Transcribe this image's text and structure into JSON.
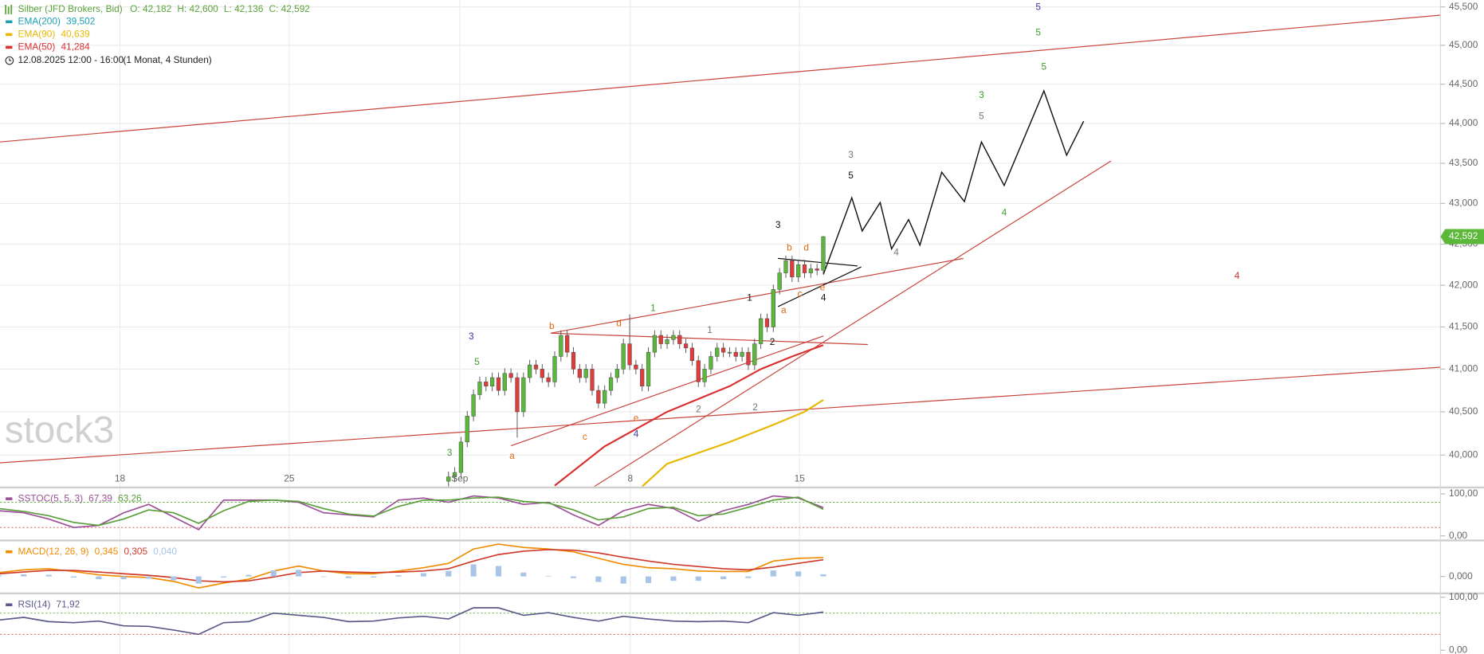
{
  "header": {
    "symbol": "Silber (JFD Brokers, Bid)",
    "ohlc": [
      "O: 42,182",
      "H: 42,600",
      "L: 42,136",
      "C: 42,592"
    ],
    "legend": [
      {
        "name": "EMA(200)",
        "value": "39,502",
        "color": "#1b9fb3"
      },
      {
        "name": "EMA(90)",
        "value": "40,639",
        "color": "#e8b800"
      },
      {
        "name": "EMA(50)",
        "value": "41,284",
        "color": "#d93030"
      }
    ],
    "timeframe": "12.08.2025 12:00 - 16:00",
    "period": "(1 Monat, 4 Stunden)"
  },
  "watermark": "stock3",
  "chart_data": [
    {
      "type": "candlestick",
      "log_scale": true,
      "grid": true,
      "up_color": "#5cb83a",
      "down_color": "#e03c3c",
      "ylim": [
        39640,
        45590
      ],
      "yticks": [
        {
          "value": 40000,
          "label": "40,000"
        },
        {
          "value": 40500,
          "label": "40,500"
        },
        {
          "value": 41000,
          "label": "41,000"
        },
        {
          "value": 41500,
          "label": "41,500"
        },
        {
          "value": 42000,
          "label": "42,000"
        },
        {
          "value": 42500,
          "label": "42,500"
        },
        {
          "value": 43000,
          "label": "43,000"
        },
        {
          "value": 43500,
          "label": "43,500"
        },
        {
          "value": 44000,
          "label": "44,000"
        },
        {
          "value": 44500,
          "label": "44,500"
        },
        {
          "value": 45000,
          "label": "45,000"
        },
        {
          "value": 45500,
          "label": "45,500"
        }
      ],
      "xlim": [
        -71.8,
        158.8
      ],
      "xticks": [
        {
          "value": -52.6,
          "label": "18"
        },
        {
          "value": -25.5,
          "label": "25"
        },
        {
          "value": 1.8,
          "label": "Sep"
        },
        {
          "value": 29.1,
          "label": "8"
        },
        {
          "value": 56.2,
          "label": "15"
        }
      ],
      "x": [
        0,
        1,
        2,
        3,
        4,
        5,
        6,
        7,
        8,
        9,
        10,
        11,
        12,
        13,
        14,
        15,
        16,
        17,
        18,
        19,
        20,
        21,
        22,
        23,
        24,
        25,
        26,
        27,
        28,
        29,
        30,
        31,
        32,
        33,
        34,
        35,
        36,
        37,
        38,
        39,
        40,
        41,
        42,
        43,
        44,
        45,
        46,
        47,
        48,
        49,
        50,
        51,
        52,
        53,
        54,
        55,
        56,
        57,
        58,
        59,
        60
      ],
      "open": [
        39700,
        39750,
        39800,
        40150,
        40450,
        40700,
        40850,
        40800,
        40900,
        40750,
        40950,
        40900,
        40500,
        40900,
        41050,
        41000,
        40900,
        40850,
        41150,
        41400,
        41200,
        41000,
        40900,
        41000,
        40750,
        40600,
        40750,
        40900,
        41000,
        41300,
        41050,
        41000,
        40800,
        41200,
        41400,
        41300,
        41350,
        41400,
        41300,
        41250,
        41100,
        40850,
        41000,
        41150,
        41250,
        41200,
        41200,
        41150,
        41200,
        41050,
        41300,
        41600,
        41500,
        41950,
        42150,
        42300,
        42100,
        42250,
        42150,
        42200,
        42182
      ],
      "high": [
        39810,
        39860,
        40210,
        40510,
        40760,
        40910,
        40910,
        40960,
        40960,
        41010,
        41010,
        40960,
        40960,
        41110,
        41110,
        41060,
        40960,
        41210,
        41460,
        41460,
        41260,
        41060,
        41060,
        41060,
        40810,
        40810,
        40960,
        41060,
        41360,
        41650,
        41110,
        41060,
        41260,
        41460,
        41460,
        41410,
        41460,
        41460,
        41360,
        41310,
        41160,
        41060,
        41210,
        41310,
        41310,
        41260,
        41260,
        41260,
        41260,
        41360,
        41660,
        41660,
        42010,
        42210,
        42360,
        42360,
        42310,
        42310,
        42260,
        42260,
        42600
      ],
      "low": [
        39640,
        39690,
        39740,
        40090,
        40390,
        40640,
        40740,
        40740,
        40690,
        40690,
        40840,
        40200,
        40440,
        40840,
        40940,
        40840,
        40790,
        40790,
        41090,
        41140,
        40940,
        40840,
        40840,
        40690,
        40540,
        40540,
        40690,
        40840,
        40940,
        40990,
        40940,
        40740,
        40740,
        41140,
        41240,
        41240,
        41290,
        41240,
        41190,
        41040,
        40790,
        40790,
        40940,
        41090,
        41140,
        41140,
        41090,
        41090,
        40990,
        40990,
        41240,
        41440,
        41440,
        41890,
        42090,
        42040,
        42040,
        42090,
        42090,
        42122,
        42136
      ],
      "close": [
        39750,
        39800,
        40150,
        40450,
        40700,
        40850,
        40800,
        40900,
        40750,
        40950,
        40900,
        40500,
        40900,
        41050,
        41000,
        40900,
        40850,
        41150,
        41400,
        41200,
        41000,
        40900,
        41000,
        40750,
        40600,
        40750,
        40900,
        41000,
        41300,
        41050,
        41000,
        40800,
        41200,
        41400,
        41300,
        41350,
        41400,
        41300,
        41250,
        41100,
        40850,
        41000,
        41150,
        41250,
        41200,
        41200,
        41150,
        41200,
        41050,
        41300,
        41600,
        41500,
        41950,
        42150,
        42300,
        42100,
        42250,
        42150,
        42200,
        42182,
        42592
      ],
      "series": [
        {
          "color": "#d93030",
          "x": [
            17,
            25,
            35,
            45,
            50,
            55,
            60
          ],
          "values": [
            39650,
            40100,
            40500,
            40800,
            41000,
            41150,
            41284
          ]
        },
        {
          "color": "#e8b800",
          "x": [
            31,
            35,
            45,
            52,
            57,
            60
          ],
          "values": [
            39640,
            39900,
            40150,
            40350,
            40500,
            40639
          ]
        }
      ],
      "last_price": 42592,
      "last_price_label": "42,592",
      "last_price_color": "#5cb83a",
      "wave_labels": [
        {
          "text": "5",
          "color": "#3a3aa0"
        },
        {
          "text": "5",
          "color": "#3f9a2f"
        },
        {
          "text": "5",
          "color": "#3f9a2f"
        },
        {
          "text": "3",
          "color": "#3f9a2f"
        },
        {
          "text": "5",
          "color": "#777"
        },
        {
          "text": "3",
          "color": "#777"
        },
        {
          "text": "5",
          "color": "#111"
        },
        {
          "text": "3",
          "color": "#111"
        },
        {
          "text": "b",
          "color": "#e06a10"
        },
        {
          "text": "d",
          "color": "#e06a10"
        },
        {
          "text": "4",
          "color": "#777"
        },
        {
          "text": "4",
          "color": "#c83030"
        },
        {
          "text": "e",
          "color": "#e06a10"
        },
        {
          "text": "c",
          "color": "#e06a10"
        },
        {
          "text": "1",
          "color": "#111"
        },
        {
          "text": "4",
          "color": "#111"
        },
        {
          "text": "a",
          "color": "#e06a10"
        },
        {
          "text": "2",
          "color": "#111"
        },
        {
          "text": "1",
          "color": "#3f9a2f"
        },
        {
          "text": "d",
          "color": "#e06a10"
        },
        {
          "text": "b",
          "color": "#e06a10"
        },
        {
          "text": "1",
          "color": "#777"
        },
        {
          "text": "3",
          "color": "#3a3aa0"
        },
        {
          "text": "5",
          "color": "#3f9a2f"
        },
        {
          "text": "4",
          "color": "#3f9a2f"
        },
        {
          "text": "2",
          "color": "#777"
        },
        {
          "text": "2",
          "color": "#777"
        },
        {
          "text": "e",
          "color": "#e06a10"
        },
        {
          "text": "4",
          "color": "#3a3aa0"
        },
        {
          "text": "c",
          "color": "#e06a10"
        },
        {
          "text": "a",
          "color": "#e06a10"
        },
        {
          "text": "3",
          "color": "#3f9a2f"
        }
      ]
    },
    {
      "type": "line",
      "title": "SSTOC(5, 5, 3)",
      "color": "#9b4f96",
      "ylim": [
        -13,
        113
      ],
      "yticks": [
        {
          "value": 100,
          "label": "100,00"
        },
        {
          "value": 0,
          "label": "0,00"
        }
      ],
      "levels": [
        20,
        80
      ],
      "level_colors": [
        "#e05050",
        "#5cb83a"
      ],
      "xlim": [
        -71.8,
        158.8
      ],
      "x": [
        -72,
        -68,
        -64,
        -60,
        -56,
        -52,
        -48,
        -44,
        -40,
        -36,
        -32,
        -28,
        -24,
        -20,
        -16,
        -12,
        -8,
        -4,
        0,
        4,
        8,
        12,
        16,
        20,
        24,
        28,
        32,
        36,
        40,
        44,
        48,
        52,
        56,
        60
      ],
      "series": [
        {
          "color": "#9b4f96",
          "value_label": "67,39",
          "values": [
            60,
            55,
            40,
            20,
            25,
            55,
            75,
            45,
            15,
            85,
            85,
            85,
            80,
            55,
            50,
            45,
            85,
            90,
            80,
            95,
            90,
            75,
            80,
            50,
            25,
            60,
            75,
            65,
            35,
            60,
            75,
            95,
            90,
            67.39
          ]
        },
        {
          "color": "#5a9e3a",
          "value_label": "63,26",
          "values": [
            65,
            58,
            48,
            32,
            25,
            40,
            62,
            55,
            30,
            60,
            82,
            85,
            82,
            65,
            52,
            47,
            70,
            85,
            85,
            90,
            92,
            82,
            78,
            62,
            38,
            45,
            65,
            68,
            48,
            52,
            68,
            85,
            92,
            63.26
          ]
        }
      ]
    },
    {
      "type": "line",
      "title": "MACD(12, 26, 9)",
      "color": "#f08c00",
      "ylim": [
        -0.31,
        0.64
      ],
      "yticks": [
        {
          "value": 0,
          "label": "0,000"
        }
      ],
      "xlim": [
        -71.8,
        158.8
      ],
      "x": [
        -72,
        -68,
        -64,
        -60,
        -56,
        -52,
        -48,
        -44,
        -40,
        -36,
        -32,
        -28,
        -24,
        -20,
        -16,
        -12,
        -8,
        -4,
        0,
        4,
        8,
        12,
        16,
        20,
        24,
        28,
        32,
        36,
        40,
        44,
        48,
        52,
        56,
        60
      ],
      "series": [
        {
          "color": "#f08c00",
          "value_label": "0,345",
          "values": [
            0.07,
            0.12,
            0.14,
            0.09,
            0.03,
            0,
            -0.02,
            -0.09,
            -0.21,
            -0.12,
            -0.05,
            0.1,
            0.19,
            0.1,
            0.05,
            0.05,
            0.1,
            0.16,
            0.24,
            0.5,
            0.59,
            0.53,
            0.5,
            0.45,
            0.33,
            0.22,
            0.16,
            0.14,
            0.1,
            0.09,
            0.09,
            0.28,
            0.33,
            0.345
          ]
        },
        {
          "color": "#d03a2a",
          "value_label": "0,305",
          "values": [
            0.05,
            0.08,
            0.11,
            0.11,
            0.08,
            0.05,
            0.02,
            -0.02,
            -0.08,
            -0.1,
            -0.08,
            -0.01,
            0.07,
            0.1,
            0.08,
            0.07,
            0.08,
            0.1,
            0.14,
            0.28,
            0.4,
            0.46,
            0.49,
            0.48,
            0.43,
            0.35,
            0.28,
            0.22,
            0.18,
            0.14,
            0.12,
            0.17,
            0.24,
            0.305
          ]
        },
        {
          "type": "bar",
          "color": "#a8c4e6",
          "value_label": "0,040",
          "values": [
            0.02,
            0.04,
            0.03,
            -0.02,
            -0.05,
            -0.05,
            -0.04,
            -0.07,
            -0.13,
            -0.02,
            0.03,
            0.11,
            0.12,
            0,
            -0.03,
            -0.02,
            0.02,
            0.06,
            0.1,
            0.22,
            0.19,
            0.07,
            0.01,
            -0.03,
            -0.1,
            -0.13,
            -0.12,
            -0.08,
            -0.08,
            -0.05,
            -0.03,
            0.11,
            0.09,
            0.04
          ]
        }
      ]
    },
    {
      "type": "line",
      "title": "RSI(14)",
      "color": "#5a5a8a",
      "ylim": [
        -7.1,
        105.4
      ],
      "yticks": [
        {
          "value": 100,
          "label": "100,00"
        },
        {
          "value": 0,
          "label": "0,00"
        }
      ],
      "levels": [
        30,
        70
      ],
      "level_colors": [
        "#e05050",
        "#5cb83a"
      ],
      "xlim": [
        -71.8,
        158.8
      ],
      "x": [
        -72,
        -68,
        -64,
        -60,
        -56,
        -52,
        -48,
        -44,
        -40,
        -36,
        -32,
        -28,
        -24,
        -20,
        -16,
        -12,
        -8,
        -4,
        0,
        4,
        8,
        12,
        16,
        20,
        24,
        28,
        32,
        36,
        40,
        44,
        48,
        52,
        56,
        60
      ],
      "series": [
        {
          "color": "#5a5a8a",
          "value_label": "71,92",
          "values": [
            57,
            62,
            54,
            52,
            55,
            46,
            45,
            38,
            30,
            52,
            54,
            70,
            66,
            62,
            54,
            55,
            61,
            64,
            59,
            80,
            80,
            66,
            71,
            62,
            55,
            64,
            59,
            55,
            54,
            55,
            52,
            71,
            66,
            71.92
          ]
        }
      ]
    }
  ]
}
